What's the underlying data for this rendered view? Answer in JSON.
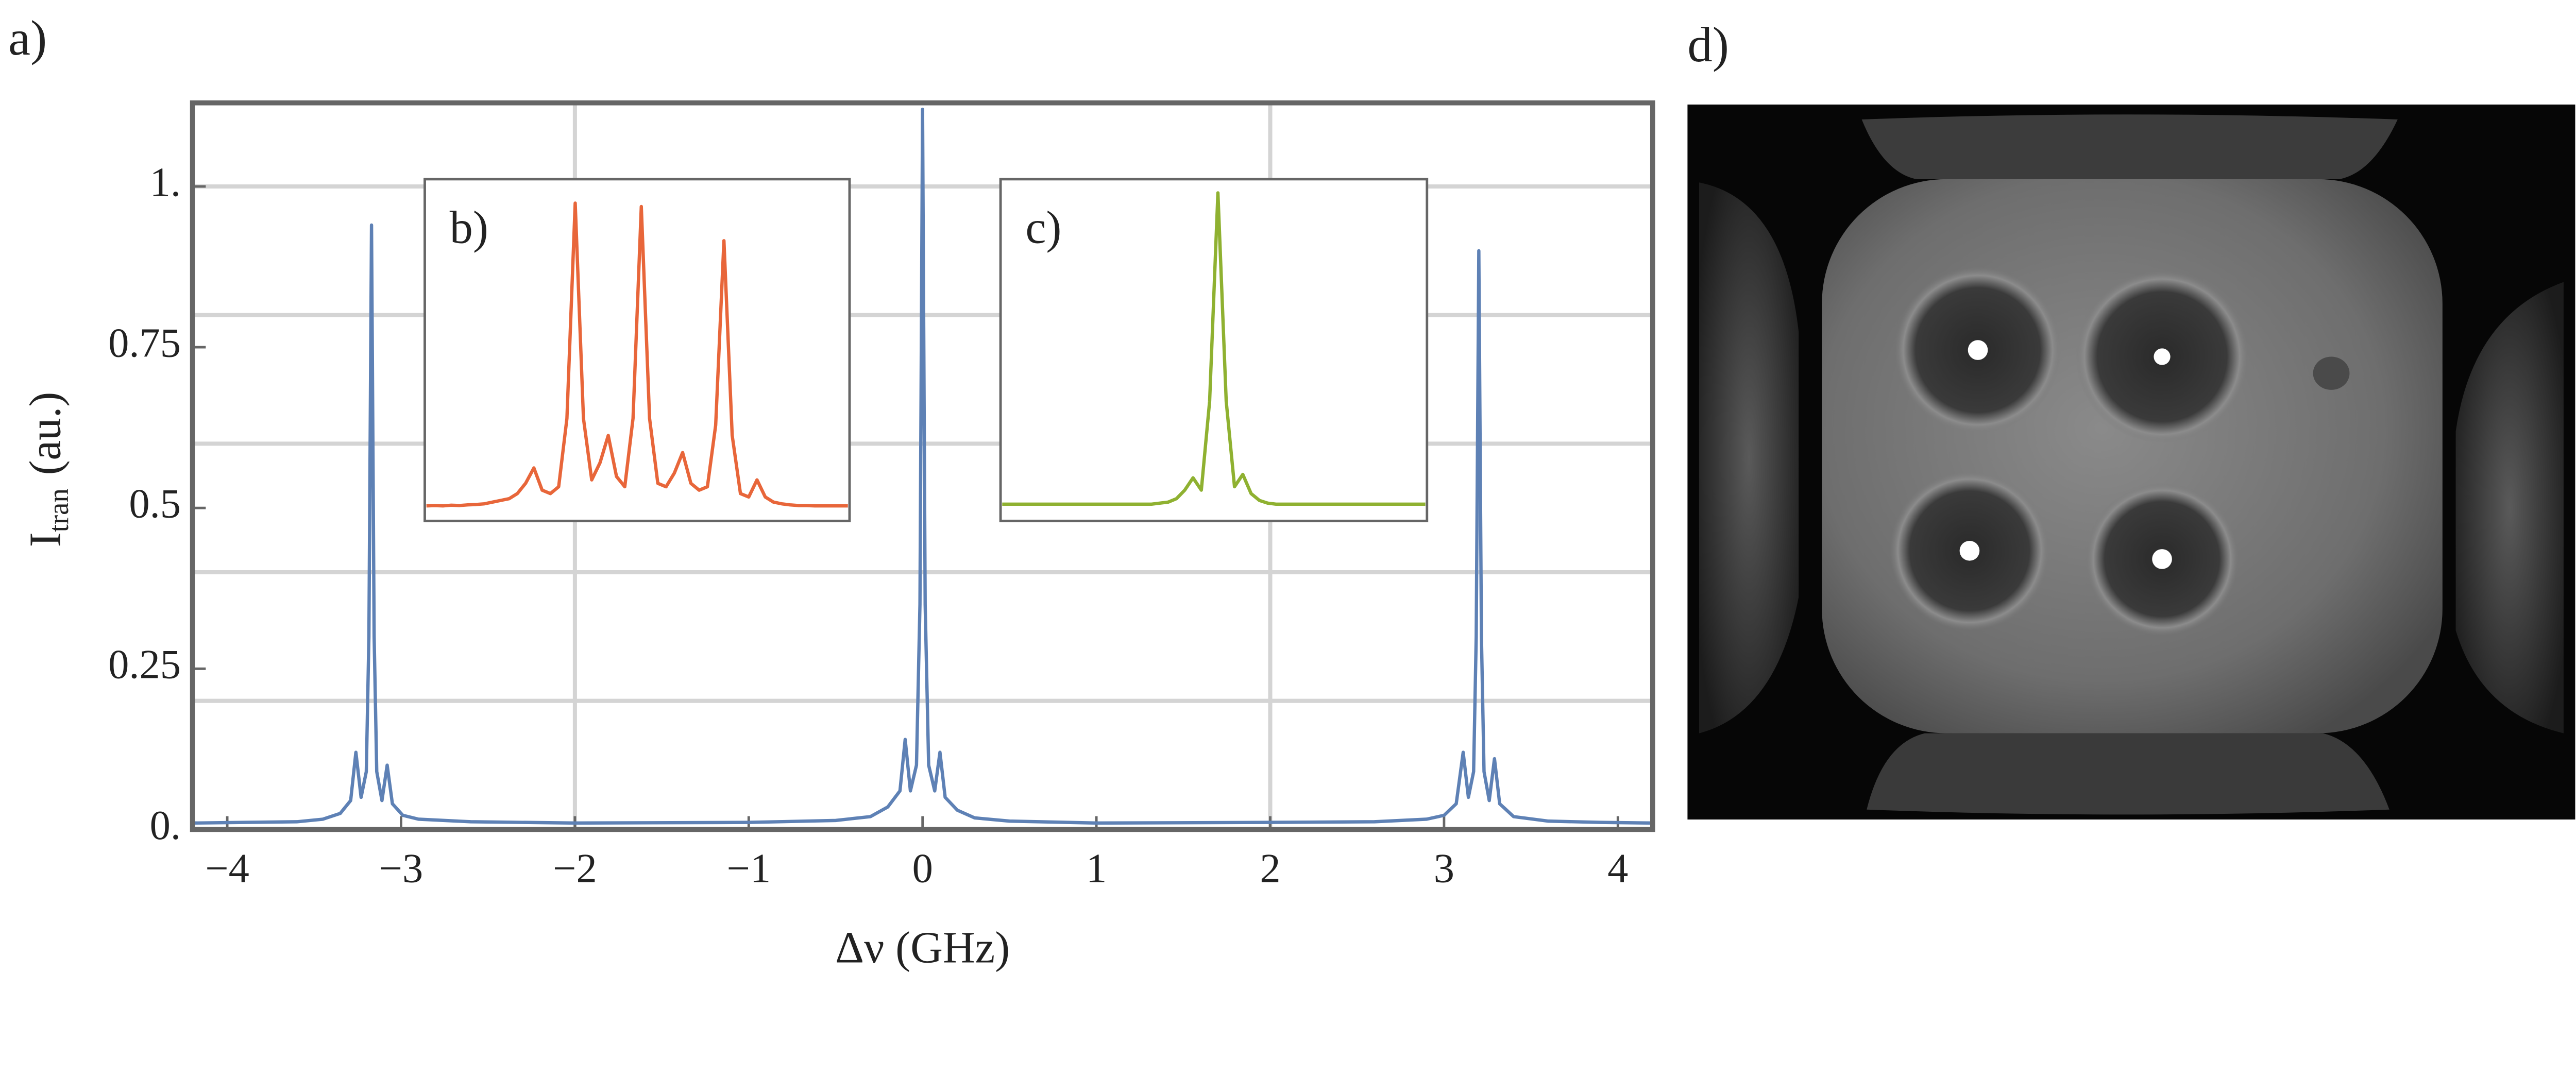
{
  "chart_data": [
    {
      "type": "line",
      "panel_label": "a)",
      "xlabel": "Δν (GHz)",
      "ylabel": [
        "I",
        "tran",
        "(au.)"
      ],
      "x": [
        -4.2,
        -3.9,
        -3.6,
        -3.45,
        -3.35,
        -3.29,
        -3.26,
        -3.23,
        -3.2,
        -3.185,
        -3.17,
        -3.155,
        -3.14,
        -3.11,
        -3.08,
        -3.05,
        -2.99,
        -2.9,
        -2.6,
        -2.0,
        -1.0,
        -0.5,
        -0.3,
        -0.2,
        -0.13,
        -0.1,
        -0.07,
        -0.035,
        -0.015,
        0,
        0.015,
        0.035,
        0.07,
        0.1,
        0.13,
        0.2,
        0.3,
        0.5,
        1.0,
        2.0,
        2.6,
        2.9,
        3.0,
        3.07,
        3.11,
        3.14,
        3.17,
        3.185,
        3.2,
        3.215,
        3.23,
        3.26,
        3.29,
        3.32,
        3.4,
        3.6,
        3.9,
        4.2
      ],
      "series": [
        {
          "color": "#5e81b5",
          "values": [
            0.01,
            0.011,
            0.012,
            0.016,
            0.025,
            0.045,
            0.12,
            0.05,
            0.09,
            0.3,
            0.94,
            0.3,
            0.09,
            0.045,
            0.1,
            0.04,
            0.022,
            0.016,
            0.012,
            0.01,
            0.011,
            0.014,
            0.02,
            0.035,
            0.06,
            0.14,
            0.06,
            0.1,
            0.35,
            1.12,
            0.35,
            0.1,
            0.06,
            0.12,
            0.05,
            0.03,
            0.018,
            0.013,
            0.01,
            0.011,
            0.012,
            0.016,
            0.022,
            0.04,
            0.12,
            0.05,
            0.09,
            0.3,
            0.9,
            0.3,
            0.09,
            0.045,
            0.11,
            0.04,
            0.02,
            0.013,
            0.011,
            0.01
          ]
        }
      ],
      "xlim": [
        -4.2,
        4.2
      ],
      "ylim": [
        0,
        1.13
      ],
      "xticks": [
        {
          "value": -4,
          "label": "−4"
        },
        {
          "value": -3,
          "label": "−3"
        },
        {
          "value": -2,
          "label": "−2"
        },
        {
          "value": -1,
          "label": "−1"
        },
        0,
        1,
        2,
        3,
        4
      ],
      "yticks": [
        {
          "value": 0,
          "label": "0."
        },
        0.25,
        0.5,
        0.75,
        {
          "value": 1,
          "label": "1."
        }
      ],
      "xgrid": [
        -2,
        2
      ],
      "ygrid": [
        0.2,
        0.4,
        0.6,
        0.8,
        1.0
      ]
    },
    {
      "type": "line",
      "panel_label": "b)",
      "ylim": [
        0,
        1
      ],
      "series": [
        {
          "color": "#e8663a",
          "values": [
            0.044,
            0.045,
            0.044,
            0.046,
            0.045,
            0.047,
            0.048,
            0.05,
            0.055,
            0.06,
            0.065,
            0.08,
            0.11,
            0.155,
            0.09,
            0.08,
            0.1,
            0.3,
            0.93,
            0.3,
            0.12,
            0.17,
            0.25,
            0.13,
            0.1,
            0.3,
            0.92,
            0.3,
            0.11,
            0.1,
            0.14,
            0.2,
            0.11,
            0.09,
            0.1,
            0.28,
            0.82,
            0.25,
            0.08,
            0.07,
            0.12,
            0.07,
            0.055,
            0.05,
            0.047,
            0.045,
            0.045,
            0.044,
            0.044,
            0.044,
            0.044,
            0.044
          ]
        }
      ]
    },
    {
      "type": "line",
      "panel_label": "c)",
      "ylim": [
        0,
        1
      ],
      "series": [
        {
          "color": "#8fb131",
          "values": [
            0.049,
            0.049,
            0.049,
            0.049,
            0.049,
            0.049,
            0.049,
            0.049,
            0.049,
            0.049,
            0.049,
            0.049,
            0.049,
            0.049,
            0.049,
            0.049,
            0.049,
            0.049,
            0.049,
            0.052,
            0.055,
            0.065,
            0.09,
            0.126,
            0.09,
            0.35,
            0.96,
            0.35,
            0.1,
            0.136,
            0.08,
            0.06,
            0.052,
            0.049,
            0.049,
            0.049,
            0.049,
            0.049,
            0.049,
            0.049,
            0.049,
            0.049,
            0.049,
            0.049,
            0.049,
            0.049,
            0.049,
            0.049,
            0.049,
            0.049,
            0.049,
            0.049
          ]
        }
      ]
    }
  ],
  "image_panel": {
    "panel_label": "d)"
  }
}
